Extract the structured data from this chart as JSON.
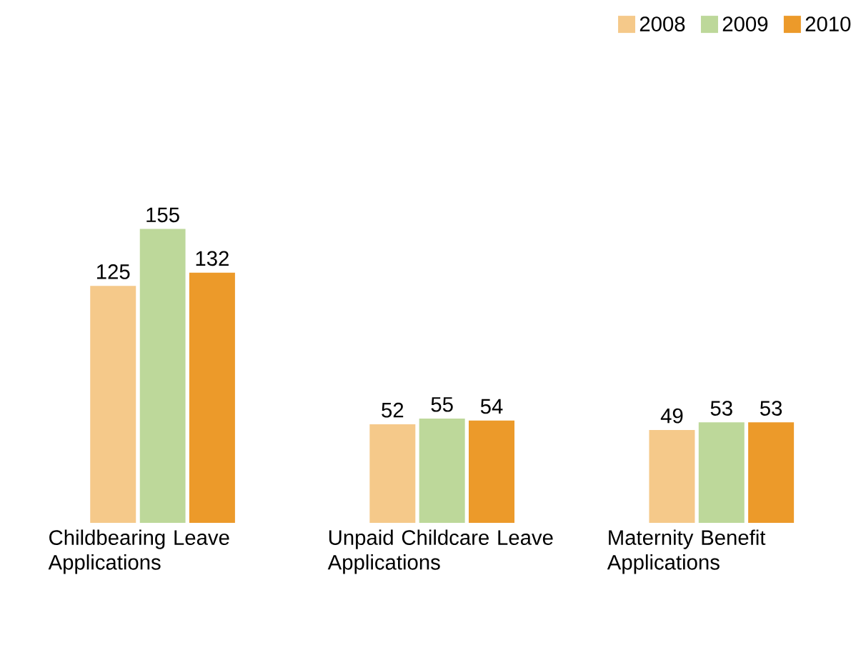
{
  "chart_data": {
    "type": "bar",
    "categories": [
      "Childbearing Leave Applications",
      "Unpaid Childcare Leave Applications",
      "Maternity Benefit Applications"
    ],
    "series": [
      {
        "name": "2008",
        "color": "#f5c98a",
        "values": [
          125,
          52,
          49
        ]
      },
      {
        "name": "2009",
        "color": "#bdd89a",
        "values": [
          155,
          55,
          53
        ]
      },
      {
        "name": "2010",
        "color": "#ec9a2a",
        "values": [
          132,
          54,
          53
        ]
      }
    ],
    "data_labels": true,
    "legend": "top right"
  }
}
